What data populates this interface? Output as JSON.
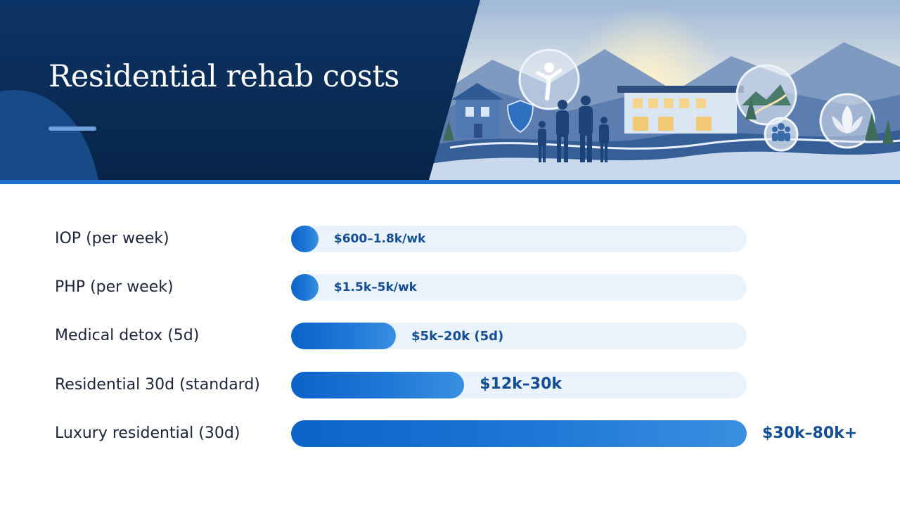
{
  "header": {
    "title": "Residential rehab costs",
    "colors": {
      "navy": "#0b2a55",
      "accent": "#1f6fd0"
    },
    "illustration_icons": [
      "house-icon",
      "shield-icon",
      "person-icon",
      "family-icon",
      "group-icon",
      "lotus-icon"
    ]
  },
  "chart_data": {
    "type": "bar",
    "orientation": "horizontal",
    "categories": [
      "IOP (per week)",
      "PHP (per week)",
      "Medical detox (5d)",
      "Residential 30d (standard)",
      "Luxury residential (30d)"
    ],
    "value_labels": [
      "$600–1.8k/wk",
      "$1.5k–5k/wk",
      "$5k–20k (5d)",
      "$12k–30k",
      "$30k–80k+"
    ],
    "values": [
      0.06,
      0.06,
      0.23,
      0.38,
      1.0
    ],
    "value_scale": "relative fraction of longest bar (no axis printed)",
    "colors": {
      "bar": "#1470d0",
      "track": "#eaf2fb",
      "label": "#134d93"
    },
    "grid": false,
    "legend": "none"
  }
}
